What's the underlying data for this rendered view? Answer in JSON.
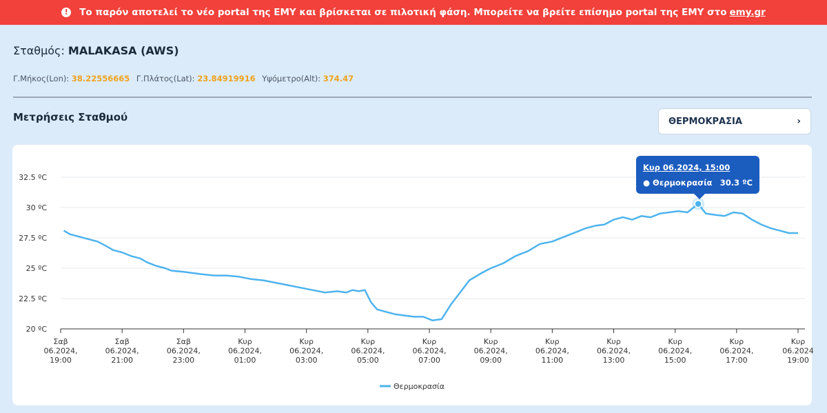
{
  "banner": {
    "icon": "exclamation-icon",
    "text": "Το παρόν αποτελεί το νέο portal της ΕΜΥ και βρίσκεται σε πιλοτική φάση. Μπορείτε να βρείτε επίσημο portal της ΕΜΥ στο",
    "link": "emy.gr"
  },
  "station": {
    "label": "Σταθμός:",
    "name": "MALAKASA (AWS)",
    "lon_label": "Γ.Μήκος(Lon):",
    "lon": "38.22556665",
    "lat_label": "Γ.Πλάτος(Lat):",
    "lat": "23.84919916",
    "alt_label": "Υψόμετρο(Alt):",
    "alt": "374.47"
  },
  "measurements": {
    "title": "Μετρήσεις Σταθμού",
    "selected": "ΘΕΡΜΟΚΡΑΣΙΑ",
    "chevron_icon": "chevron-right-icon"
  },
  "tooltip": {
    "date": "Κυρ 06.2024, 15:00",
    "series": "● Θερμοκρασία",
    "value": "30.3 ºC"
  },
  "colors": {
    "line": "#4db3ee",
    "tooltip": "#1b5cbf",
    "banner": "#f2403a",
    "accent": "#f0a21a"
  },
  "chart_data": {
    "type": "line",
    "legend_position": "bottom-center",
    "grid": true,
    "ylim": [
      20,
      32.5
    ],
    "y_ticks": [
      {
        "value": 20,
        "label": "20 ºC"
      },
      {
        "value": 22.5,
        "label": "22.5 ºC"
      },
      {
        "value": 25,
        "label": "25 ºC"
      },
      {
        "value": 27.5,
        "label": "27.5 ºC"
      },
      {
        "value": 30,
        "label": "30 ºC"
      },
      {
        "value": 32.5,
        "label": "32.5 ºC"
      }
    ],
    "x_hours_range": [
      0,
      24
    ],
    "x_ticks": [
      {
        "hour": 0,
        "lines": [
          "Σαβ",
          "06.2024,",
          "19:00"
        ]
      },
      {
        "hour": 2,
        "lines": [
          "Σαβ",
          "06.2024,",
          "21:00"
        ]
      },
      {
        "hour": 4,
        "lines": [
          "Σαβ",
          "06.2024,",
          "23:00"
        ]
      },
      {
        "hour": 6,
        "lines": [
          "Κυρ",
          "06.2024,",
          "01:00"
        ]
      },
      {
        "hour": 8,
        "lines": [
          "Κυρ",
          "06.2024,",
          "03:00"
        ]
      },
      {
        "hour": 10,
        "lines": [
          "Κυρ",
          "06.2024,",
          "05:00"
        ]
      },
      {
        "hour": 12,
        "lines": [
          "Κυρ",
          "06.2024,",
          "07:00"
        ]
      },
      {
        "hour": 14,
        "lines": [
          "Κυρ",
          "06.2024,",
          "09:00"
        ]
      },
      {
        "hour": 16,
        "lines": [
          "Κυρ",
          "06.2024,",
          "11:00"
        ]
      },
      {
        "hour": 18,
        "lines": [
          "Κυρ",
          "06.2024,",
          "13:00"
        ]
      },
      {
        "hour": 20,
        "lines": [
          "Κυρ",
          "06.2024,",
          "15:00"
        ]
      },
      {
        "hour": 22,
        "lines": [
          "Κυρ",
          "06.2024,",
          "17:00"
        ]
      },
      {
        "hour": 24,
        "lines": [
          "Κυρ",
          "06.2024",
          "19:00"
        ]
      }
    ],
    "series": [
      {
        "name": "Θερμοκρασία",
        "highlight": {
          "x": 20.75,
          "y": 30.3
        },
        "points": [
          [
            0.1,
            28.1
          ],
          [
            0.3,
            27.8
          ],
          [
            0.6,
            27.6
          ],
          [
            0.9,
            27.4
          ],
          [
            1.2,
            27.2
          ],
          [
            1.5,
            26.8
          ],
          [
            1.7,
            26.5
          ],
          [
            2.0,
            26.3
          ],
          [
            2.3,
            26.0
          ],
          [
            2.6,
            25.8
          ],
          [
            2.8,
            25.5
          ],
          [
            3.1,
            25.2
          ],
          [
            3.4,
            25.0
          ],
          [
            3.6,
            24.8
          ],
          [
            4.0,
            24.7
          ],
          [
            4.3,
            24.6
          ],
          [
            4.6,
            24.5
          ],
          [
            5.0,
            24.4
          ],
          [
            5.4,
            24.4
          ],
          [
            5.8,
            24.3
          ],
          [
            6.2,
            24.1
          ],
          [
            6.6,
            24.0
          ],
          [
            7.0,
            23.8
          ],
          [
            7.4,
            23.6
          ],
          [
            7.8,
            23.4
          ],
          [
            8.2,
            23.2
          ],
          [
            8.6,
            23.0
          ],
          [
            9.0,
            23.1
          ],
          [
            9.3,
            23.0
          ],
          [
            9.5,
            23.2
          ],
          [
            9.7,
            23.1
          ],
          [
            9.9,
            23.2
          ],
          [
            10.1,
            22.2
          ],
          [
            10.3,
            21.6
          ],
          [
            10.6,
            21.4
          ],
          [
            10.9,
            21.2
          ],
          [
            11.2,
            21.1
          ],
          [
            11.5,
            21.0
          ],
          [
            11.8,
            21.0
          ],
          [
            12.1,
            20.7
          ],
          [
            12.4,
            20.8
          ],
          [
            12.7,
            22.0
          ],
          [
            13.0,
            23.0
          ],
          [
            13.3,
            24.0
          ],
          [
            13.7,
            24.6
          ],
          [
            14.0,
            25.0
          ],
          [
            14.4,
            25.4
          ],
          [
            14.8,
            26.0
          ],
          [
            15.2,
            26.4
          ],
          [
            15.6,
            27.0
          ],
          [
            16.0,
            27.2
          ],
          [
            16.4,
            27.6
          ],
          [
            16.8,
            28.0
          ],
          [
            17.1,
            28.3
          ],
          [
            17.4,
            28.5
          ],
          [
            17.7,
            28.6
          ],
          [
            18.0,
            29.0
          ],
          [
            18.3,
            29.2
          ],
          [
            18.6,
            29.0
          ],
          [
            18.9,
            29.3
          ],
          [
            19.2,
            29.2
          ],
          [
            19.5,
            29.5
          ],
          [
            19.8,
            29.6
          ],
          [
            20.1,
            29.7
          ],
          [
            20.4,
            29.6
          ],
          [
            20.75,
            30.3
          ],
          [
            21.0,
            29.5
          ],
          [
            21.3,
            29.4
          ],
          [
            21.6,
            29.3
          ],
          [
            21.9,
            29.6
          ],
          [
            22.2,
            29.5
          ],
          [
            22.5,
            29.0
          ],
          [
            22.8,
            28.6
          ],
          [
            23.1,
            28.3
          ],
          [
            23.4,
            28.1
          ],
          [
            23.7,
            27.9
          ],
          [
            24.0,
            27.9
          ]
        ]
      }
    ]
  }
}
